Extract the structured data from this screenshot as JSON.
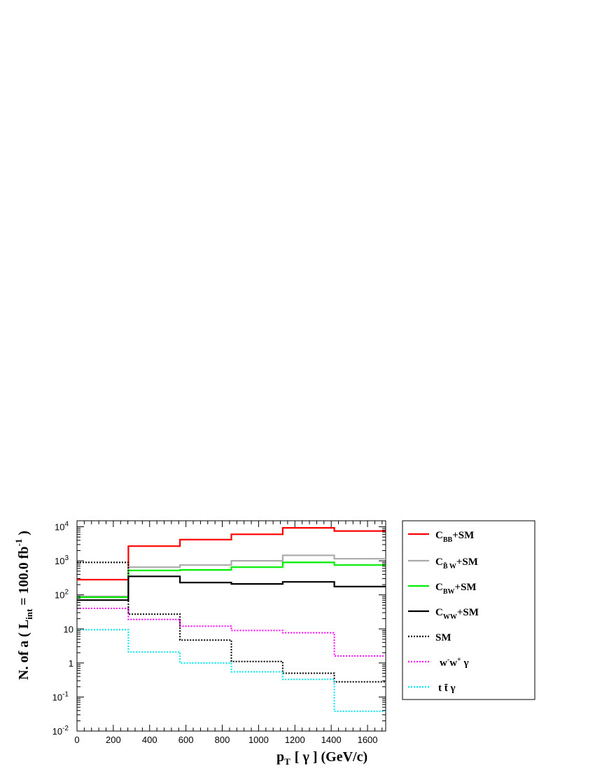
{
  "chart_data": {
    "type": "line",
    "subtype": "step-histogram",
    "x_scale": "linear",
    "y_scale": "log",
    "xlim": [
      0,
      1700
    ],
    "ylim": [
      0.01,
      15000
    ],
    "bin_edges": [
      0,
      283,
      567,
      850,
      1133,
      1417,
      1700
    ],
    "x_ticks": [
      0,
      200,
      400,
      600,
      800,
      1000,
      1200,
      1400,
      1600
    ],
    "x_tick_labels": [
      "0",
      "200",
      "400",
      "600",
      "800",
      "1000",
      "1200",
      "1400",
      "1600"
    ],
    "y_ticks": [
      {
        "value": 0.01,
        "base": "10",
        "exp": "-2"
      },
      {
        "value": 0.1,
        "base": "10",
        "exp": "-1"
      },
      {
        "value": 1,
        "base": "1",
        "exp": ""
      },
      {
        "value": 10,
        "base": "10",
        "exp": ""
      },
      {
        "value": 100,
        "base": "10",
        "exp": "2"
      },
      {
        "value": 1000,
        "base": "10",
        "exp": "3"
      },
      {
        "value": 10000,
        "base": "10",
        "exp": "4"
      }
    ],
    "xlabel": {
      "p": "p",
      "sub": "T",
      "rest": "[  γ ] (GeV/c)"
    },
    "ylabel": {
      "pre": "N. of a ( L",
      "sub": "int",
      "mid": " = 100.0 fb",
      "sup": "-1",
      "post": " )"
    },
    "legend_position": "right-outside",
    "series": [
      {
        "name": "C_BB+SM",
        "legend": {
          "main": "C",
          "sub": "BB",
          "rest": "+SM"
        },
        "color": "#ff0000",
        "style": "solid",
        "values": [
          280,
          2700,
          4200,
          6000,
          9300,
          7500
        ]
      },
      {
        "name": "C_B~W+SM",
        "legend": {
          "main": "C",
          "sub": "B̃ W",
          "rest": "+SM"
        },
        "color": "#aaaaaa",
        "style": "solid",
        "values": [
          90,
          650,
          750,
          1000,
          1450,
          1150
        ]
      },
      {
        "name": "C_BW+SM",
        "legend": {
          "main": "C",
          "sub": "BW",
          "rest": "+SM"
        },
        "color": "#00ee00",
        "style": "solid",
        "values": [
          85,
          520,
          540,
          650,
          900,
          750
        ]
      },
      {
        "name": "C_WW+SM",
        "legend": {
          "main": "C",
          "sub": "WW",
          "rest": "+SM"
        },
        "color": "#000000",
        "style": "solid",
        "values": [
          70,
          350,
          230,
          210,
          240,
          175
        ]
      },
      {
        "name": "SM",
        "legend": {
          "main": "SM",
          "sub": "",
          "rest": ""
        },
        "color": "#000000",
        "style": "dotted",
        "values": [
          900,
          27,
          4.7,
          1.1,
          0.5,
          0.28
        ]
      },
      {
        "name": "w-w+ γ",
        "legend": {
          "main": "w",
          "sup1": "-",
          "mid": "w",
          "sup2": "+",
          "rest": "  γ"
        },
        "color": "#ff00ff",
        "style": "dotted",
        "values": [
          40,
          19,
          12,
          9,
          7.7,
          1.6
        ]
      },
      {
        "name": "t t̄ γ",
        "legend": {
          "main": "t  t̄  γ",
          "sub": "",
          "rest": ""
        },
        "color": "#00e5ee",
        "style": "dotted",
        "values": [
          9.5,
          2.1,
          1.0,
          0.55,
          0.33,
          0.038
        ]
      }
    ]
  }
}
